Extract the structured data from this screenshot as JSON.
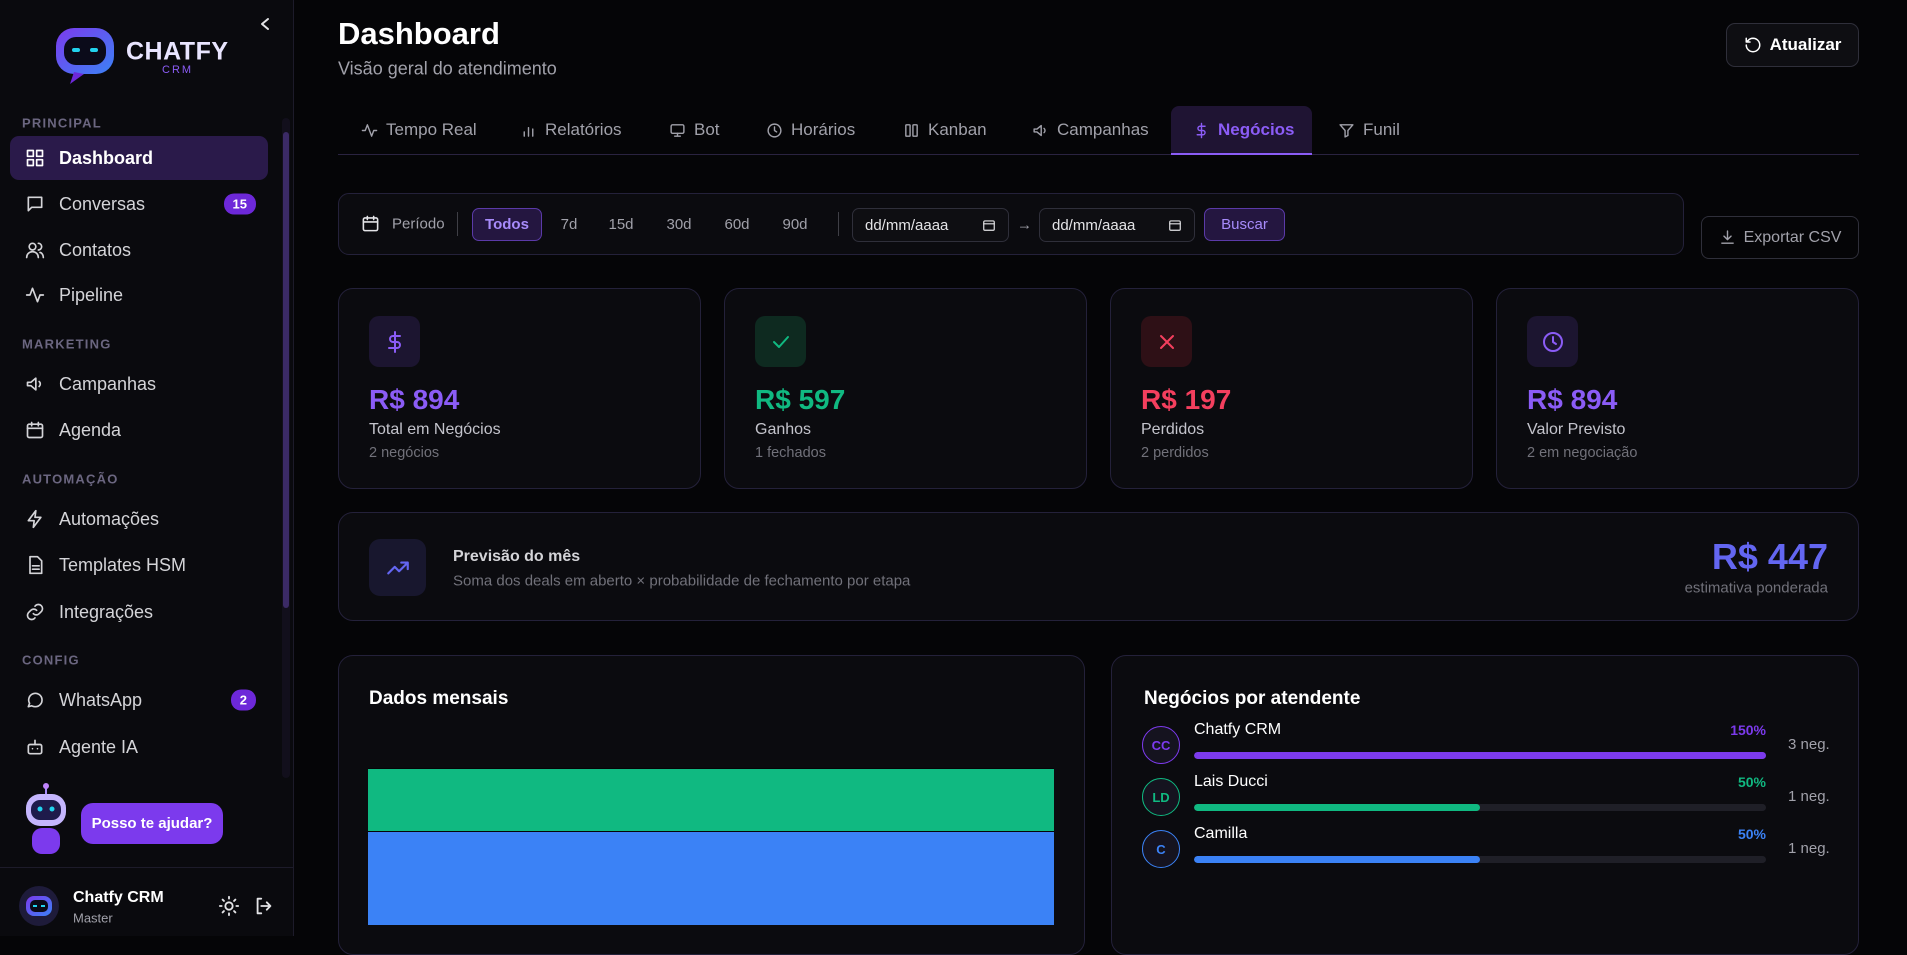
{
  "sidebar": {
    "logo": {
      "name": "CHATFY",
      "sub": "CRM"
    },
    "sections": [
      {
        "title": "PRINCIPAL",
        "items": [
          {
            "label": "Dashboard"
          },
          {
            "label": "Conversas",
            "badge": 15
          },
          {
            "label": "Contatos"
          },
          {
            "label": "Pipeline"
          }
        ]
      },
      {
        "title": "MARKETING",
        "items": [
          {
            "label": "Campanhas"
          },
          {
            "label": "Agenda"
          }
        ]
      },
      {
        "title": "AUTOMAÇÃO",
        "items": [
          {
            "label": "Automações"
          },
          {
            "label": "Templates HSM"
          },
          {
            "label": "Integrações"
          }
        ]
      },
      {
        "title": "CONFIG",
        "items": [
          {
            "label": "WhatsApp",
            "badge": 2
          },
          {
            "label": "Agente IA"
          }
        ]
      }
    ],
    "help": "Posso te ajudar?",
    "user": {
      "name": "Chatfy CRM",
      "role": "Master"
    }
  },
  "header": {
    "title": "Dashboard",
    "subtitle": "Visão geral do atendimento",
    "refresh": "Atualizar"
  },
  "tabs": [
    "Tempo Real",
    "Relatórios",
    "Bot",
    "Horários",
    "Kanban",
    "Campanhas",
    "Negócios",
    "Funil"
  ],
  "filter": {
    "label": "Período",
    "options": [
      "Todos",
      "7d",
      "15d",
      "30d",
      "60d",
      "90d"
    ],
    "date_from": "dd/mm/aaaa",
    "arrow": "→",
    "date_to": "dd/mm/aaaa",
    "search": "Buscar"
  },
  "export": "Exportar CSV",
  "stats": [
    {
      "value": "R$ 894",
      "label": "Total em Negócios",
      "note": "2 negócios"
    },
    {
      "value": "R$ 597",
      "label": "Ganhos",
      "note": "1 fechados"
    },
    {
      "value": "R$ 197",
      "label": "Perdidos",
      "note": "2 perdidos"
    },
    {
      "value": "R$ 894",
      "label": "Valor Previsto",
      "note": "2 em negociação"
    }
  ],
  "forecast": {
    "title": "Previsão do mês",
    "description": "Soma dos deals em aberto × probabilidade de fechamento por etapa",
    "value": "R$ 447",
    "note": "estimativa ponderada"
  },
  "monthly": {
    "title": "Dados mensais",
    "segments": [
      {
        "color": "#3b82f6",
        "value": 894
      },
      {
        "color": "#10b981",
        "value": 597
      }
    ]
  },
  "agents": {
    "title": "Negócios por atendente",
    "rows": [
      {
        "initials": "CC",
        "name": "Chatfy CRM",
        "share": {
          "value": 150,
          "label": "150%"
        },
        "deals": "3 neg.",
        "color": "#7c3aed"
      },
      {
        "initials": "LD",
        "name": "Lais Ducci",
        "share": {
          "value": 50,
          "label": "50%"
        },
        "deals": "1 neg.",
        "color": "#10b981"
      },
      {
        "initials": "C",
        "name": "Camilla",
        "share": {
          "value": 50,
          "label": "50%"
        },
        "deals": "1 neg.",
        "color": "#3b82f6"
      }
    ]
  }
}
